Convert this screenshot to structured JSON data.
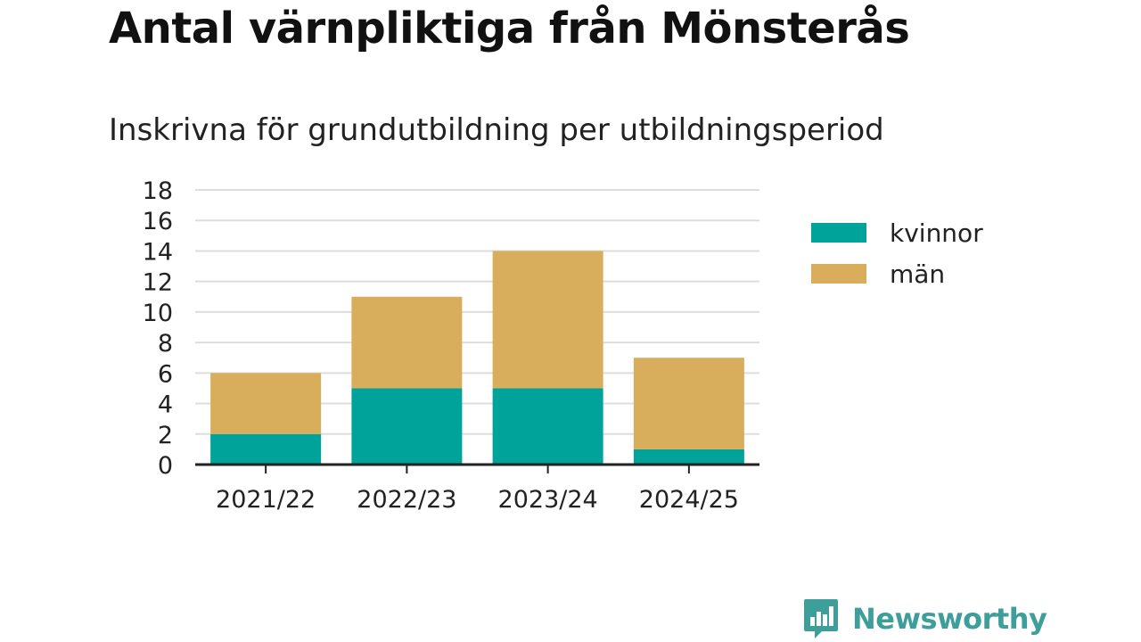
{
  "title": "Antal värnpliktiga från Mönsterås",
  "subtitle": "Inskrivna för grundutbildning per utbildningsperiod",
  "brand": {
    "name": "Newsworthy",
    "color": "#3d9e9a",
    "icon": "bar-chart-speech-bubble-icon"
  },
  "colors": {
    "kvinnor": "#00a39a",
    "man": "#d8ad5b",
    "grid": "#dddddd",
    "axis": "#222222",
    "tick_label": "#222222"
  },
  "chart_data": {
    "type": "bar",
    "stacked": true,
    "categories": [
      "2021/22",
      "2022/23",
      "2023/24",
      "2024/25"
    ],
    "series": [
      {
        "name": "kvinnor",
        "values": [
          2,
          5,
          5,
          1
        ]
      },
      {
        "name": "män",
        "values": [
          4,
          6,
          9,
          6
        ]
      }
    ],
    "ylim": [
      0,
      18
    ],
    "yticks": [
      "0",
      "2",
      "4",
      "6",
      "8",
      "10",
      "12",
      "14",
      "16",
      "18"
    ],
    "grid": true,
    "legend_position": "right"
  }
}
